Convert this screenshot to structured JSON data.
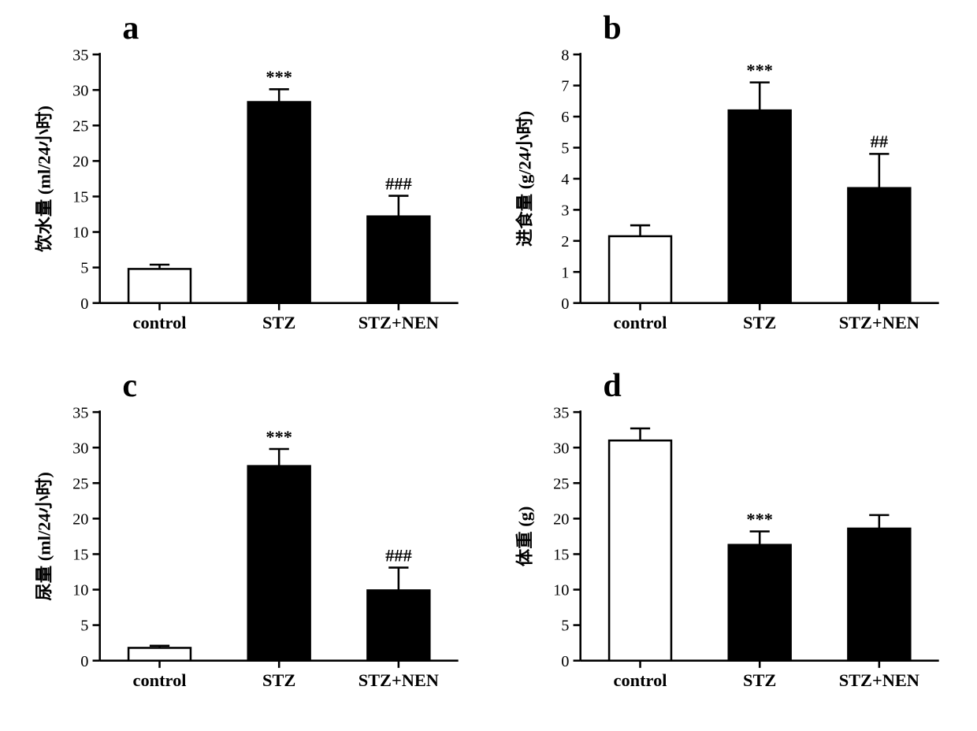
{
  "figure": {
    "background_color": "#ffffff",
    "axis_color": "#000000",
    "axis_stroke_width": 2.5,
    "bar_stroke_width": 2.5,
    "font_family": "Times New Roman",
    "panel_label_fontsize": 42,
    "tick_label_fontsize": 20,
    "cat_label_fontsize": 22,
    "y_title_fontsize": 22,
    "sig_label_fontsize": 22,
    "panels": {
      "a": {
        "label": "a",
        "type": "bar",
        "y_title": "饮水量 (ml/24小时)",
        "categories": [
          "control",
          "STZ",
          "STZ+NEN"
        ],
        "values": [
          4.8,
          28.3,
          12.2
        ],
        "errors": [
          0.6,
          1.8,
          2.9
        ],
        "bar_fills": [
          "#ffffff",
          "#000000",
          "#000000"
        ],
        "bar_stroke": "#000000",
        "sig_labels": [
          "",
          "***",
          "###"
        ],
        "ylim": [
          0,
          35
        ],
        "ytick_step": 5,
        "bar_width": 0.52
      },
      "b": {
        "label": "b",
        "type": "bar",
        "y_title": "进食量 (g/24小时)",
        "categories": [
          "control",
          "STZ",
          "STZ+NEN"
        ],
        "values": [
          2.15,
          6.2,
          3.7
        ],
        "errors": [
          0.35,
          0.9,
          1.1
        ],
        "bar_fills": [
          "#ffffff",
          "#000000",
          "#000000"
        ],
        "bar_stroke": "#000000",
        "sig_labels": [
          "",
          "***",
          "##"
        ],
        "ylim": [
          0,
          8
        ],
        "ytick_step": 1,
        "bar_width": 0.52
      },
      "c": {
        "label": "c",
        "type": "bar",
        "y_title": "尿量 (ml/24小时)",
        "categories": [
          "control",
          "STZ",
          "STZ+NEN"
        ],
        "values": [
          1.8,
          27.4,
          9.9
        ],
        "errors": [
          0.3,
          2.4,
          3.2
        ],
        "bar_fills": [
          "#ffffff",
          "#000000",
          "#000000"
        ],
        "bar_stroke": "#000000",
        "sig_labels": [
          "",
          "***",
          "###"
        ],
        "ylim": [
          0,
          35
        ],
        "ytick_step": 5,
        "bar_width": 0.52
      },
      "d": {
        "label": "d",
        "type": "bar",
        "y_title": "体重 (g)",
        "categories": [
          "control",
          "STZ",
          "STZ+NEN"
        ],
        "values": [
          31.0,
          16.3,
          18.6
        ],
        "errors": [
          1.7,
          1.9,
          1.9
        ],
        "bar_fills": [
          "#ffffff",
          "#000000",
          "#000000"
        ],
        "bar_stroke": "#000000",
        "sig_labels": [
          "",
          "***",
          ""
        ],
        "ylim": [
          0,
          35
        ],
        "ytick_step": 5,
        "bar_width": 0.52
      }
    },
    "panel_label_positions": {
      "a": {
        "left_pct": 22,
        "top_pct": -2
      },
      "b": {
        "left_pct": 22,
        "top_pct": -2
      },
      "c": {
        "left_pct": 22,
        "top_pct": -2
      },
      "d": {
        "left_pct": 22,
        "top_pct": -2
      }
    }
  }
}
